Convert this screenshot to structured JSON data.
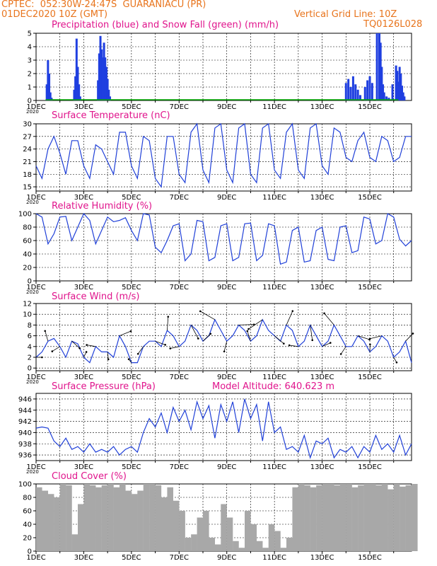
{
  "header": {
    "line1": "CPTEC:  052:30W-24:47S  GUARANIACU (PR)",
    "line2": "01DEC2020 10Z (GMT)",
    "vgrid": "Vertical Grid Line: 10Z",
    "code": "TQ0126L028"
  },
  "model_altitude": "Model Altitude: 640.623 m",
  "x_ticks": [
    "1DEC",
    "3DEC",
    "5DEC",
    "7DEC",
    "9DEC",
    "11DEC",
    "13DEC",
    "15DEC"
  ],
  "colors": {
    "precip": "#1f3fe0",
    "snow": "#00aa00",
    "line": "#2040d8",
    "cloud": "#a8a8a8",
    "title": "#e0148c",
    "header": "#e8741c"
  },
  "chart_data": [
    {
      "type": "bar",
      "title": "Precipitation (blue) and Snow Fall (green) (mm/h)",
      "x_unit": "days since 1DEC 10Z",
      "ylim": [
        0,
        5
      ],
      "yticks": [
        0,
        1,
        2,
        3,
        4,
        5
      ],
      "series": [
        {
          "name": "Precipitation",
          "x": [
            0.45,
            0.5,
            0.55,
            0.6,
            0.65,
            1.6,
            1.65,
            1.7,
            1.75,
            1.8,
            1.85,
            2.6,
            2.65,
            2.7,
            2.75,
            2.8,
            2.85,
            2.9,
            2.95,
            3.0,
            3.05,
            3.1,
            13.0,
            13.1,
            13.2,
            13.3,
            13.4,
            13.5,
            13.6,
            13.8,
            13.9,
            14.0,
            14.1,
            14.3,
            14.4,
            14.45,
            14.5,
            14.55,
            14.6,
            14.7,
            14.8,
            14.95,
            15.1,
            15.15,
            15.2,
            15.25,
            15.3,
            15.35,
            15.4,
            15.45
          ],
          "values": [
            1.2,
            3.0,
            2.0,
            0.6,
            0.2,
            0.8,
            1.8,
            4.6,
            2.5,
            1.2,
            0.3,
            1.5,
            3.5,
            4.8,
            3.8,
            3.2,
            4.3,
            3.2,
            2.5,
            1.6,
            0.8,
            0.3,
            1.3,
            1.6,
            1.0,
            1.8,
            1.2,
            0.8,
            0.4,
            1.0,
            1.5,
            1.8,
            1.3,
            5.0,
            5.0,
            4.3,
            2.5,
            1.2,
            0.6,
            0.3,
            0.2,
            1.2,
            2.6,
            2.2,
            1.4,
            2.5,
            2.0,
            1.1,
            0.6,
            0.3
          ]
        },
        {
          "name": "Snow Fall",
          "x": [
            0,
            15.2
          ],
          "values": [
            0,
            0
          ]
        }
      ]
    },
    {
      "type": "line",
      "title": "Surface Temperature (nC)",
      "x_unit": "days since 1DEC 10Z",
      "ylim": [
        14,
        30
      ],
      "yticks": [
        15,
        18,
        21,
        24,
        27,
        30
      ],
      "x": [
        0,
        0.25,
        0.5,
        0.75,
        1,
        1.25,
        1.5,
        1.75,
        2,
        2.25,
        2.5,
        2.75,
        3,
        3.25,
        3.5,
        3.75,
        4,
        4.25,
        4.5,
        4.75,
        5,
        5.25,
        5.5,
        5.75,
        6,
        6.25,
        6.5,
        6.75,
        7,
        7.25,
        7.5,
        7.75,
        8,
        8.25,
        8.5,
        8.75,
        9,
        9.25,
        9.5,
        9.75,
        10,
        10.25,
        10.5,
        10.75,
        11,
        11.25,
        11.5,
        11.75,
        12,
        12.25,
        12.5,
        12.75,
        13,
        13.25,
        13.5,
        13.75,
        14,
        14.25,
        14.5,
        14.75,
        15,
        15.25,
        15.5,
        15.75
      ],
      "values": [
        20,
        17,
        24,
        27,
        23,
        18,
        26,
        26,
        20,
        17,
        25,
        24,
        21,
        18,
        28,
        28,
        20,
        17,
        27,
        26,
        17,
        15,
        27,
        27,
        18,
        16,
        28,
        30,
        19,
        16,
        29,
        30,
        19,
        16,
        29,
        30,
        18,
        16,
        29,
        30,
        19,
        17,
        28,
        30,
        19,
        17,
        29,
        30,
        20,
        18,
        29,
        28,
        22,
        21,
        26,
        28,
        22,
        21,
        27,
        26,
        21,
        22,
        27,
        27
      ]
    },
    {
      "type": "line",
      "title": "Relative Humidity (%)",
      "x_unit": "days since 1DEC 10Z",
      "ylim": [
        0,
        100
      ],
      "yticks": [
        0,
        20,
        40,
        60,
        80,
        100
      ],
      "x": [
        0,
        0.25,
        0.5,
        0.75,
        1,
        1.25,
        1.5,
        1.75,
        2,
        2.25,
        2.5,
        2.75,
        3,
        3.25,
        3.5,
        3.75,
        4,
        4.25,
        4.5,
        4.75,
        5,
        5.25,
        5.5,
        5.75,
        6,
        6.25,
        6.5,
        6.75,
        7,
        7.25,
        7.5,
        7.75,
        8,
        8.25,
        8.5,
        8.75,
        9,
        9.25,
        9.5,
        9.75,
        10,
        10.25,
        10.5,
        10.75,
        11,
        11.25,
        11.5,
        11.75,
        12,
        12.25,
        12.5,
        12.75,
        13,
        13.25,
        13.5,
        13.75,
        14,
        14.25,
        14.5,
        14.75,
        15,
        15.25,
        15.5,
        15.75
      ],
      "values": [
        100,
        95,
        55,
        70,
        95,
        96,
        60,
        80,
        100,
        90,
        55,
        75,
        95,
        88,
        90,
        94,
        75,
        60,
        100,
        98,
        50,
        42,
        60,
        82,
        85,
        30,
        40,
        90,
        88,
        30,
        35,
        82,
        85,
        30,
        35,
        85,
        86,
        30,
        38,
        85,
        82,
        25,
        28,
        75,
        80,
        28,
        30,
        75,
        80,
        32,
        30,
        80,
        82,
        42,
        45,
        95,
        92,
        55,
        60,
        100,
        95,
        62,
        52,
        60
      ]
    },
    {
      "type": "line",
      "title": "Surface Wind (m/s)",
      "x_unit": "days since 1DEC 10Z",
      "ylim": [
        -0.5,
        12
      ],
      "yticks": [
        0,
        2,
        4,
        6,
        8,
        10,
        12
      ],
      "x": [
        0,
        0.25,
        0.5,
        0.75,
        1,
        1.25,
        1.5,
        1.75,
        2,
        2.25,
        2.5,
        2.75,
        3,
        3.25,
        3.5,
        3.75,
        4,
        4.25,
        4.5,
        4.75,
        5,
        5.25,
        5.5,
        5.75,
        6,
        6.25,
        6.5,
        6.75,
        7,
        7.25,
        7.5,
        7.75,
        8,
        8.25,
        8.5,
        8.75,
        9,
        9.25,
        9.5,
        9.75,
        10,
        10.25,
        10.5,
        10.75,
        11,
        11.25,
        11.5,
        11.75,
        12,
        12.25,
        12.5,
        12.75,
        13,
        13.25,
        13.5,
        13.75,
        14,
        14.25,
        14.5,
        14.75,
        15,
        15.25,
        15.5,
        15.75
      ],
      "values": [
        2,
        3,
        5,
        5.5,
        4,
        2,
        5,
        4.5,
        2,
        1,
        4,
        3,
        3,
        2,
        6,
        4,
        1,
        1,
        4,
        5,
        5,
        4,
        7,
        6,
        4,
        5,
        8,
        7,
        5,
        6,
        9,
        7,
        5,
        6,
        8,
        7,
        5,
        6,
        9,
        7,
        6,
        5,
        8,
        7,
        4,
        5,
        8,
        6,
        4,
        5,
        8,
        6,
        4,
        4,
        6,
        5,
        3,
        4,
        6,
        5,
        2,
        3,
        5,
        1
      ]
    },
    {
      "type": "line",
      "title": "Surface Pressure (hPa)",
      "x_unit": "days since 1DEC 10Z",
      "ylim": [
        935,
        947
      ],
      "yticks": [
        936,
        938,
        940,
        942,
        944,
        946
      ],
      "x": [
        0,
        0.25,
        0.5,
        0.75,
        1,
        1.25,
        1.5,
        1.75,
        2,
        2.25,
        2.5,
        2.75,
        3,
        3.25,
        3.5,
        3.75,
        4,
        4.25,
        4.5,
        4.75,
        5,
        5.25,
        5.5,
        5.75,
        6,
        6.25,
        6.5,
        6.75,
        7,
        7.25,
        7.5,
        7.75,
        8,
        8.25,
        8.5,
        8.75,
        9,
        9.25,
        9.5,
        9.75,
        10,
        10.25,
        10.5,
        10.75,
        11,
        11.25,
        11.5,
        11.75,
        12,
        12.25,
        12.5,
        12.75,
        13,
        13.25,
        13.5,
        13.75,
        14,
        14.25,
        14.5,
        14.75,
        15,
        15.25,
        15.5,
        15.75
      ],
      "values": [
        940.8,
        941,
        940.8,
        938.5,
        937.5,
        939,
        937,
        937.5,
        936.5,
        938,
        936.5,
        937,
        936.5,
        937.5,
        936,
        937,
        937.5,
        936.5,
        940,
        942.5,
        941,
        943.5,
        940,
        944.5,
        942,
        944,
        940.5,
        945.5,
        942.5,
        944.8,
        939,
        945,
        942,
        945.5,
        940,
        946,
        942.5,
        945,
        938.5,
        945.5,
        940,
        941,
        937,
        937.5,
        936.5,
        939.5,
        935.5,
        938.5,
        938,
        939,
        935.5,
        937,
        936.5,
        937.5,
        935.5,
        937.5,
        936.5,
        939.5,
        937,
        938,
        936.5,
        939.5,
        936,
        938
      ]
    },
    {
      "type": "bar",
      "title": "Cloud Cover (%)",
      "x_unit": "days since 1DEC 10Z",
      "ylim": [
        0,
        100
      ],
      "yticks": [
        0,
        20,
        40,
        60,
        80,
        100
      ],
      "x": [
        0,
        0.25,
        0.5,
        0.75,
        1,
        1.25,
        1.5,
        1.75,
        2,
        2.25,
        2.5,
        2.75,
        3,
        3.25,
        3.5,
        3.75,
        4,
        4.25,
        4.5,
        4.75,
        5,
        5.25,
        5.5,
        5.75,
        6,
        6.25,
        6.5,
        6.75,
        7,
        7.25,
        7.5,
        7.75,
        8,
        8.25,
        8.5,
        8.75,
        9,
        9.25,
        9.5,
        9.75,
        10,
        10.25,
        10.5,
        10.75,
        11,
        11.25,
        11.5,
        11.75,
        12,
        12.25,
        12.5,
        12.75,
        13,
        13.25,
        13.5,
        13.75,
        14,
        14.25,
        14.5,
        14.75,
        15,
        15.25,
        15.5,
        15.75
      ],
      "values": [
        95,
        90,
        85,
        80,
        100,
        98,
        25,
        70,
        100,
        98,
        95,
        98,
        100,
        95,
        100,
        90,
        85,
        90,
        100,
        100,
        98,
        80,
        95,
        75,
        60,
        20,
        25,
        50,
        60,
        20,
        10,
        70,
        50,
        15,
        5,
        60,
        40,
        15,
        5,
        40,
        30,
        5,
        20,
        95,
        100,
        98,
        95,
        98,
        100,
        100,
        98,
        100,
        100,
        95,
        98,
        100,
        100,
        98,
        100,
        92,
        100,
        96,
        98,
        100
      ]
    }
  ]
}
